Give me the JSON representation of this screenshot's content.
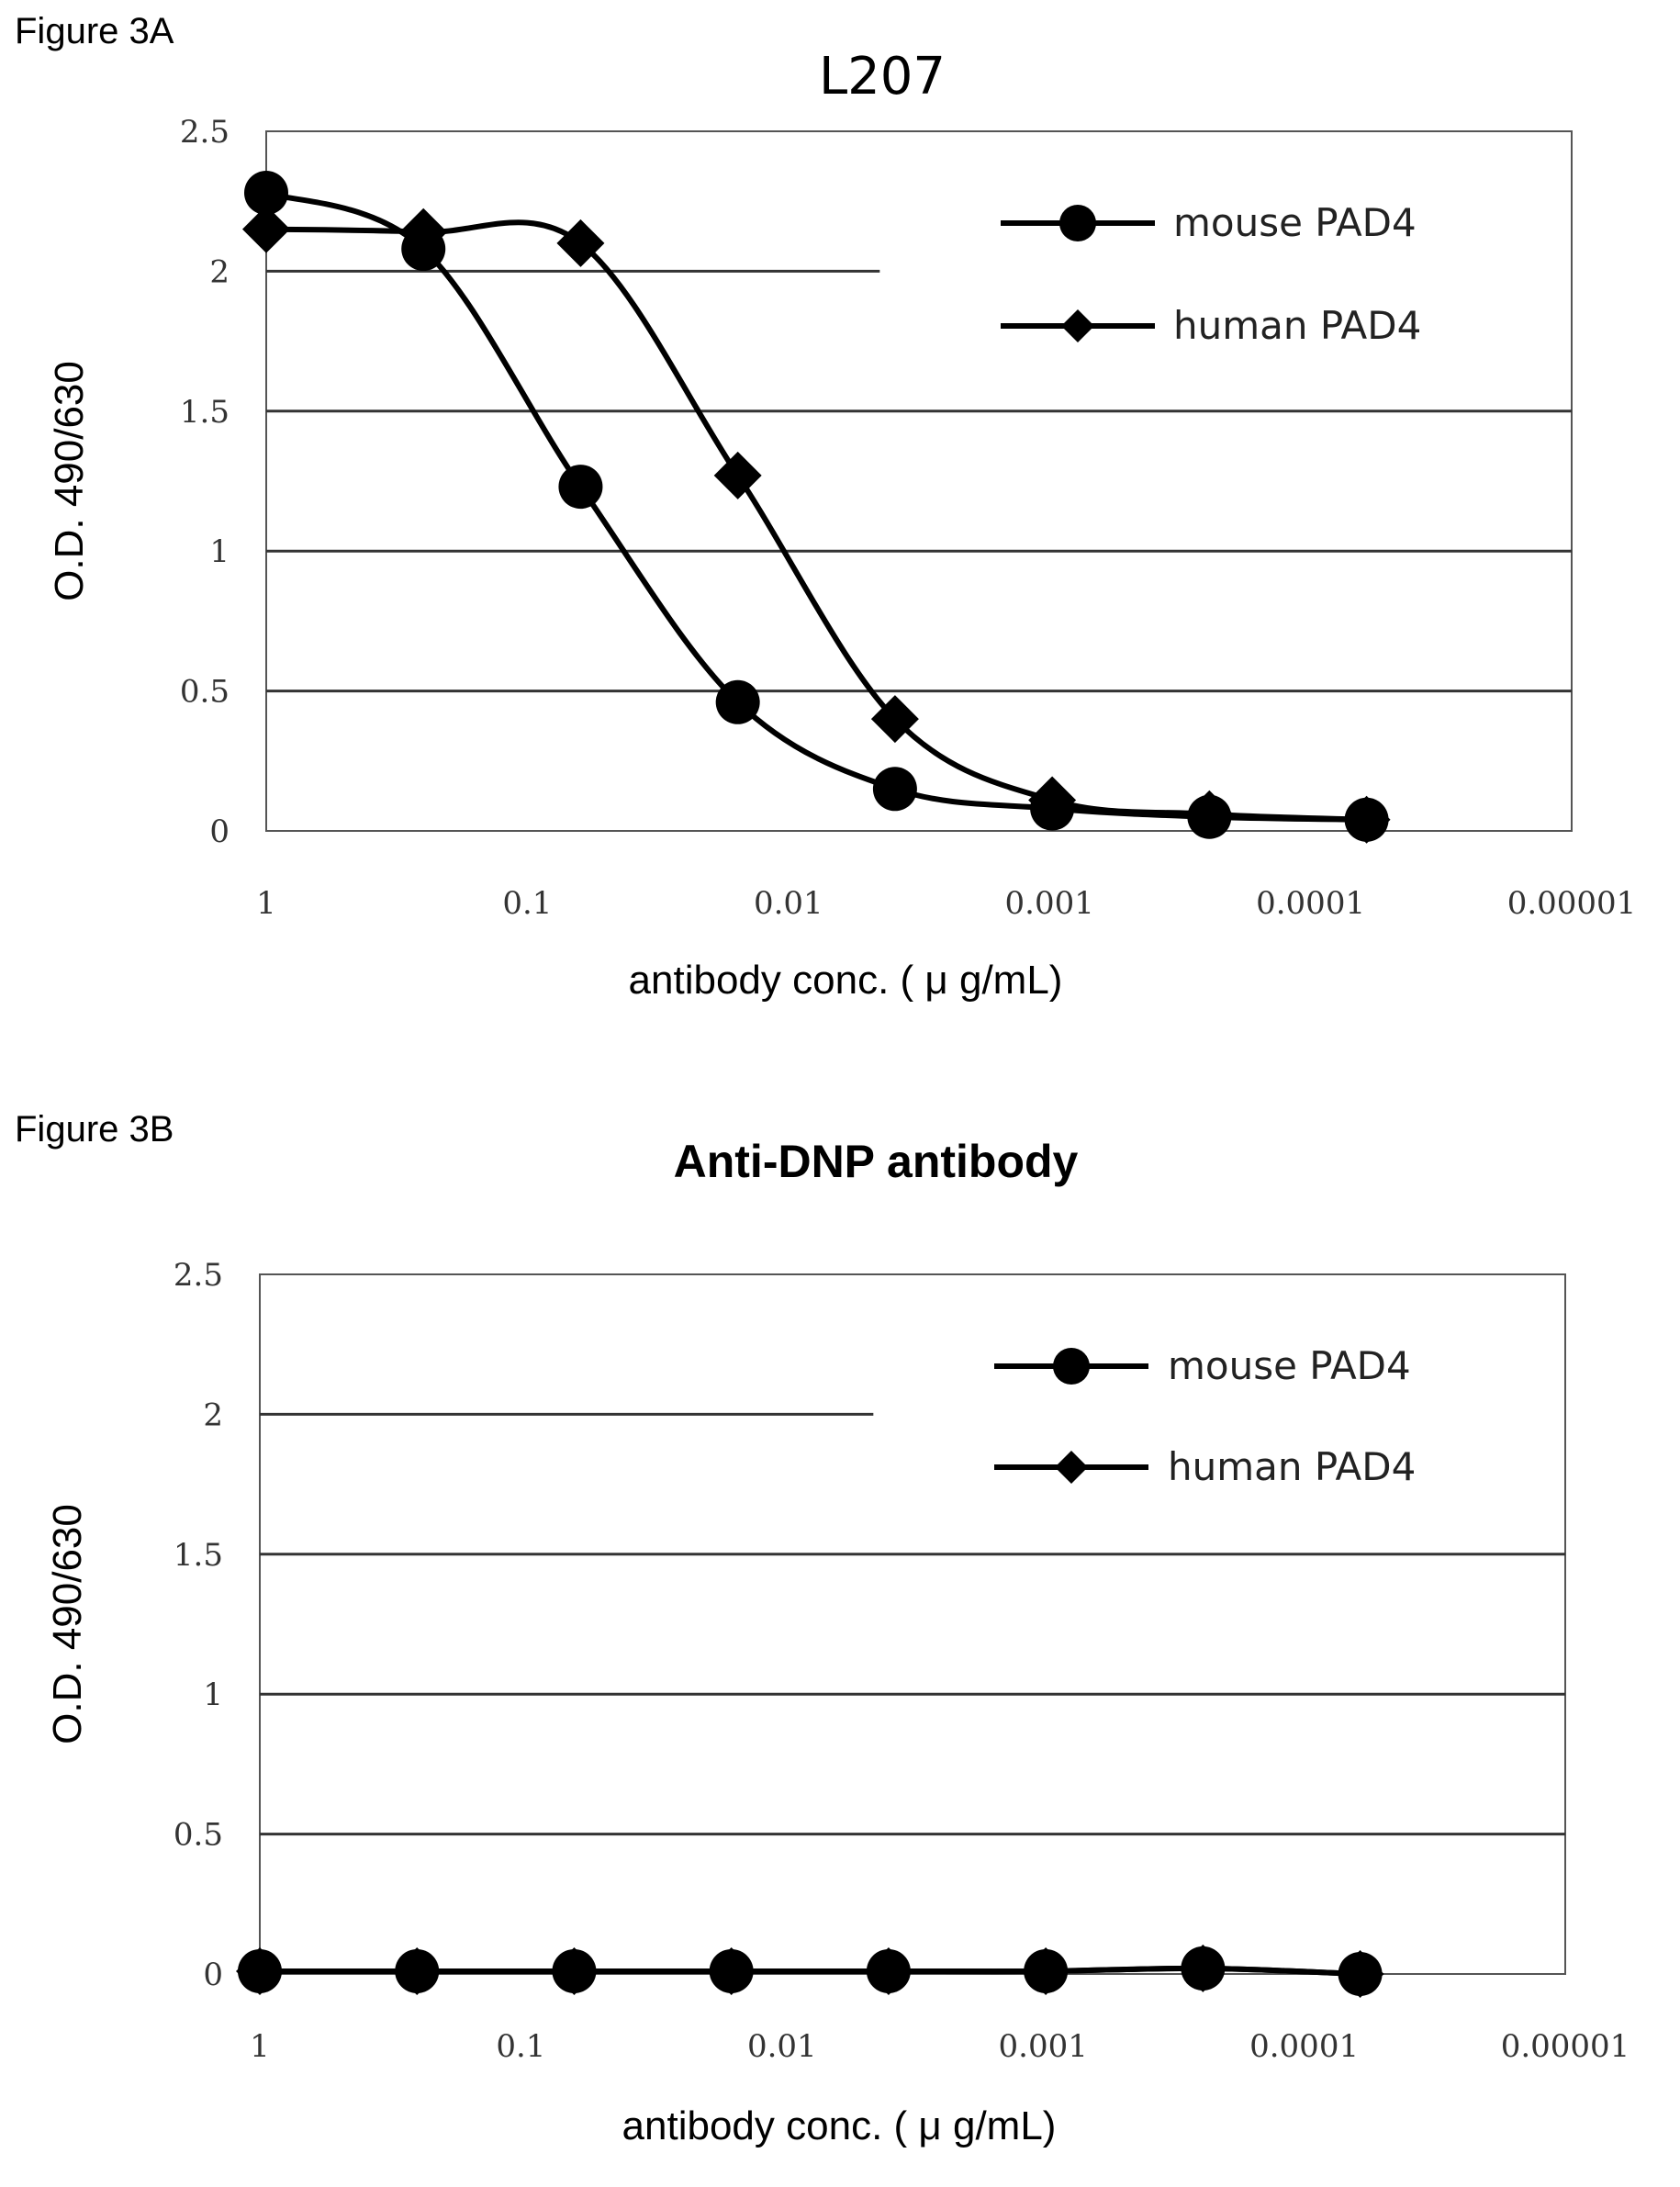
{
  "figures": [
    {
      "label": "Figure 3A"
    },
    {
      "label": "Figure 3B"
    }
  ],
  "chart_data": [
    {
      "type": "line",
      "title": "L207",
      "xlabel": "antibody conc. ( μ g/mL)",
      "ylabel": "O.D. 490/630",
      "x_scale": "log-reversed",
      "x_ticks": [
        "1",
        "0.1",
        "0.01",
        "0.001",
        "0.0001",
        "0.00001"
      ],
      "y_ticks": [
        "0",
        "0.5",
        "1",
        "1.5",
        "2",
        "2.5"
      ],
      "ylim": [
        0,
        2.5
      ],
      "xlim": [
        1,
        1e-05
      ],
      "grid": "horizontal",
      "legend": "top-right",
      "x": [
        1,
        0.25,
        0.0625,
        0.015625,
        0.00390625,
        0.0009765625,
        0.000244140625,
        6.103515625e-05
      ],
      "series": [
        {
          "name": "mouse PAD4",
          "marker": "circle",
          "values": [
            2.28,
            2.08,
            1.23,
            0.46,
            0.15,
            0.08,
            0.05,
            0.04
          ]
        },
        {
          "name": "human PAD4",
          "marker": "diamond",
          "values": [
            2.15,
            2.14,
            2.1,
            1.27,
            0.4,
            0.11,
            0.06,
            0.04
          ]
        }
      ]
    },
    {
      "type": "line",
      "title": "Anti-DNP antibody",
      "xlabel": "antibody conc. ( μ g/mL)",
      "ylabel": "O.D. 490/630",
      "x_scale": "log-reversed",
      "x_ticks": [
        "1",
        "0.1",
        "0.01",
        "0.001",
        "0.0001",
        "0.00001"
      ],
      "y_ticks": [
        "0",
        "0.5",
        "1",
        "1.5",
        "2",
        "2.5"
      ],
      "ylim": [
        0,
        2.5
      ],
      "xlim": [
        1,
        1e-05
      ],
      "grid": "horizontal",
      "legend": "top-right",
      "x": [
        1,
        0.25,
        0.0625,
        0.015625,
        0.00390625,
        0.0009765625,
        0.000244140625,
        6.103515625e-05
      ],
      "series": [
        {
          "name": "mouse PAD4",
          "marker": "circle",
          "values": [
            0.01,
            0.01,
            0.01,
            0.01,
            0.01,
            0.01,
            0.02,
            0.0
          ]
        },
        {
          "name": "human PAD4",
          "marker": "diamond",
          "values": [
            0.01,
            0.01,
            0.01,
            0.01,
            0.01,
            0.01,
            0.02,
            0.0
          ]
        }
      ]
    }
  ]
}
